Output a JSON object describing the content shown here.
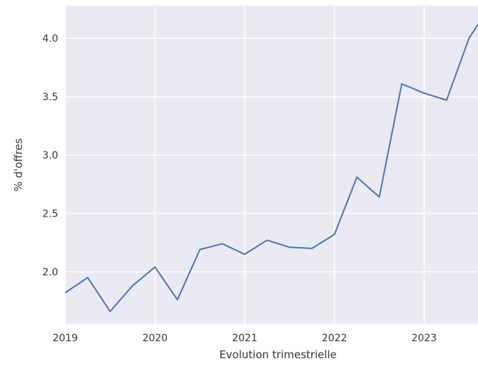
{
  "chart_data": {
    "type": "line",
    "title": "",
    "xlabel": "Evolution trimestrielle",
    "ylabel": "% d'offres",
    "x_ticks": [
      "2019",
      "2020",
      "2021",
      "2022",
      "2023"
    ],
    "y_ticks": [
      "2.0",
      "2.5",
      "3.0",
      "3.5",
      "4.0"
    ],
    "xlim": [
      2019.0,
      2023.6
    ],
    "ylim": [
      1.55,
      4.28
    ],
    "grid": true,
    "legend": "none",
    "colors": {
      "background": "#eaeaf2",
      "grid": "#ffffff",
      "line": "#4c72b0"
    },
    "series": [
      {
        "x": [
          2019.0,
          2019.25,
          2019.5,
          2019.75,
          2020.0,
          2020.25,
          2020.5,
          2020.75,
          2021.0,
          2021.25,
          2021.5,
          2021.75,
          2022.0,
          2022.25,
          2022.5,
          2022.75,
          2023.0,
          2023.25,
          2023.5,
          2023.6
        ],
        "values": [
          1.82,
          1.95,
          1.66,
          1.88,
          2.04,
          1.76,
          2.19,
          2.24,
          2.15,
          2.27,
          2.21,
          2.2,
          2.32,
          2.81,
          2.64,
          3.61,
          3.53,
          3.47,
          4.0,
          4.12
        ]
      }
    ]
  }
}
